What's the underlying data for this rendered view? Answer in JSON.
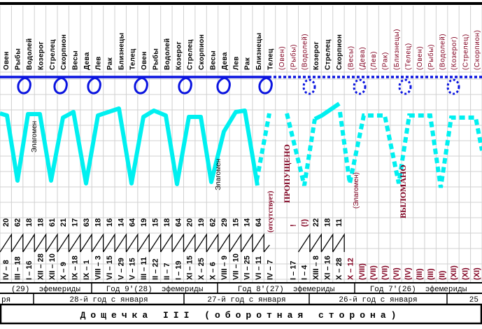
{
  "colors": {
    "grid": "#d0d0d0",
    "loop": "#0a14e0",
    "wave": "#00f0f0",
    "ink": "#000000",
    "red": "#800020"
  },
  "columns": [
    {
      "sign": "Овен",
      "num": "20",
      "date": "IV – 8"
    },
    {
      "sign": "Рыбы",
      "num": "62",
      "date": "III – 18"
    },
    {
      "sign": "Водолей",
      "num": "18",
      "date": "I – 16"
    },
    {
      "sign": "Козерог",
      "num": "18",
      "date": "XII – 28"
    },
    {
      "sign": "Стрелец",
      "num": "61",
      "date": "XII – 10"
    },
    {
      "sign": "Скорпион",
      "num": "21",
      "date": "X – 9"
    },
    {
      "sign": "Весы",
      "num": "17",
      "date": "IX – 18"
    },
    {
      "sign": "Дева",
      "num": "63",
      "date": "IX – 1"
    },
    {
      "sign": "Лев",
      "num": "18",
      "date": "VIII – 3"
    },
    {
      "sign": "Рак",
      "num": "16",
      "date": "VI – 15"
    },
    {
      "sign": "Близнецы",
      "num": "14",
      "date": "V – 29"
    },
    {
      "sign": "Телец",
      "num": "64",
      "date": "V – 15"
    },
    {
      "sign": "Овен",
      "num": "19",
      "date": "III – 11"
    },
    {
      "sign": "Рыбы",
      "num": "15",
      "date": "II – 22"
    },
    {
      "sign": "Водолей",
      "num": "18",
      "date": "II – 7"
    },
    {
      "sign": "Козерог",
      "num": "64",
      "date": "I – 19"
    },
    {
      "sign": "Стрелец",
      "num": "20",
      "date": "XI – 15"
    },
    {
      "sign": "Скорпион",
      "num": "19",
      "date": "X – 25"
    },
    {
      "sign": "Весы",
      "num": "62",
      "date": "X – 6"
    },
    {
      "sign": "Дева",
      "num": "29",
      "date": "VIII – 9"
    },
    {
      "sign": "Лев",
      "num": "15",
      "date": "VII – 10"
    },
    {
      "sign": "Рак",
      "num": "14",
      "date": "VI – 25"
    },
    {
      "sign": "Близнецы",
      "num": "64",
      "date": "VI – 11"
    },
    {
      "sign": "Телец",
      "num": "(отсутствует)",
      "num_red": true,
      "date": "IV – 7"
    },
    {
      "sign": "(Овен)",
      "sign_red": true,
      "num": "",
      "date": ""
    },
    {
      "sign": "(Рыбы)",
      "sign_red": true,
      "num": "!",
      "num_red": true,
      "date": "I – 17"
    },
    {
      "sign": "(Водолей)",
      "sign_red": true,
      "num": "(!)",
      "num_red": true,
      "date": "I – 4"
    },
    {
      "sign": "Козерог",
      "num": "22",
      "date": "XIII – 8"
    },
    {
      "sign": "Стрелец",
      "num": "18",
      "date": "XI – 16"
    },
    {
      "sign": "Скорпион",
      "num": "11",
      "date": "X – 28"
    },
    {
      "sign": "(Весы)",
      "sign_red": true,
      "num": "",
      "date": "X – 12",
      "date_red": true
    },
    {
      "sign": "(Дева)",
      "sign_red": true,
      "num": "",
      "date": "(VIII)",
      "date_red": true
    },
    {
      "sign": "(Лев)",
      "sign_red": true,
      "num": "",
      "date": "(VII)",
      "date_red": true
    },
    {
      "sign": "(Рак)",
      "sign_red": true,
      "num": "",
      "date": "(VII)",
      "date_red": true
    },
    {
      "sign": "(Близнецы)",
      "sign_red": true,
      "num": "",
      "date": "(VI)",
      "date_red": true
    },
    {
      "sign": "(Телец)",
      "sign_red": true,
      "num": "",
      "date": "(IV)",
      "date_red": true
    },
    {
      "sign": "(Овен)",
      "sign_red": true,
      "num": "",
      "date": "(III)",
      "date_red": true
    },
    {
      "sign": "(Рыбы)",
      "sign_red": true,
      "num": "",
      "date": "(III)",
      "date_red": true
    },
    {
      "sign": "(Водолей)",
      "sign_red": true,
      "num": "",
      "date": "(II)",
      "date_red": true
    },
    {
      "sign": "(Козерог)",
      "sign_red": true,
      "num": "",
      "date": "(XII)",
      "date_red": true
    },
    {
      "sign": "(Стрелец)",
      "sign_red": true,
      "num": "",
      "date": "(XI)",
      "date_red": true
    },
    {
      "sign": "(Скорпион)",
      "sign_red": true,
      "num": "",
      "date": "(XI)",
      "date_red": true
    }
  ],
  "annotations": {
    "elagomen_1": "Элагомен",
    "elagomen_2": "Элагомен",
    "elagomen_3": "(Элагомен)",
    "skipped": "ПРОПУЩЕНО",
    "broken": "ВЫЛОМАНО"
  },
  "ephemerides": [
    "(29)  эфемериды",
    "Год 9'(28)  эфемериды",
    "Год 8'(27)  эфемериды",
    "Год 7'(26)  эфемериды"
  ],
  "years": [
    "ря",
    "28-й год с января",
    "27-й год с января",
    "26-й год с января",
    "25"
  ],
  "title": "Дощечка III (оборотная сторона)"
}
